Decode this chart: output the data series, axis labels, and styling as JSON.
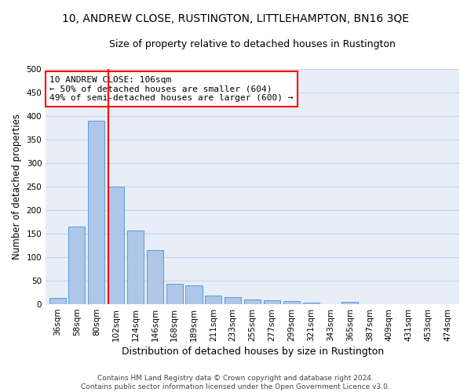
{
  "title_line1": "10, ANDREW CLOSE, RUSTINGTON, LITTLEHAMPTON, BN16 3QE",
  "title_line2": "Size of property relative to detached houses in Rustington",
  "xlabel": "Distribution of detached houses by size in Rustington",
  "ylabel": "Number of detached properties",
  "categories": [
    "36sqm",
    "58sqm",
    "80sqm",
    "102sqm",
    "124sqm",
    "146sqm",
    "168sqm",
    "189sqm",
    "211sqm",
    "233sqm",
    "255sqm",
    "277sqm",
    "299sqm",
    "321sqm",
    "343sqm",
    "365sqm",
    "387sqm",
    "409sqm",
    "431sqm",
    "453sqm",
    "474sqm"
  ],
  "values": [
    13,
    165,
    390,
    250,
    157,
    115,
    43,
    40,
    18,
    15,
    10,
    8,
    6,
    4,
    0,
    5,
    0,
    0,
    0,
    0,
    0
  ],
  "bar_color": "#aec6e8",
  "bar_edgecolor": "#5b9bd5",
  "vline_color": "red",
  "annotation_text": "10 ANDREW CLOSE: 106sqm\n← 50% of detached houses are smaller (604)\n49% of semi-detached houses are larger (600) →",
  "annotation_box_color": "white",
  "annotation_box_edgecolor": "red",
  "ylim": [
    0,
    500
  ],
  "yticks": [
    0,
    50,
    100,
    150,
    200,
    250,
    300,
    350,
    400,
    450,
    500
  ],
  "grid_color": "#c8d4e8",
  "background_color": "#e8eef8",
  "footer": "Contains HM Land Registry data © Crown copyright and database right 2024.\nContains public sector information licensed under the Open Government Licence v3.0.",
  "title_fontsize": 10,
  "subtitle_fontsize": 9,
  "tick_fontsize": 7.5,
  "ylabel_fontsize": 8.5,
  "xlabel_fontsize": 9
}
